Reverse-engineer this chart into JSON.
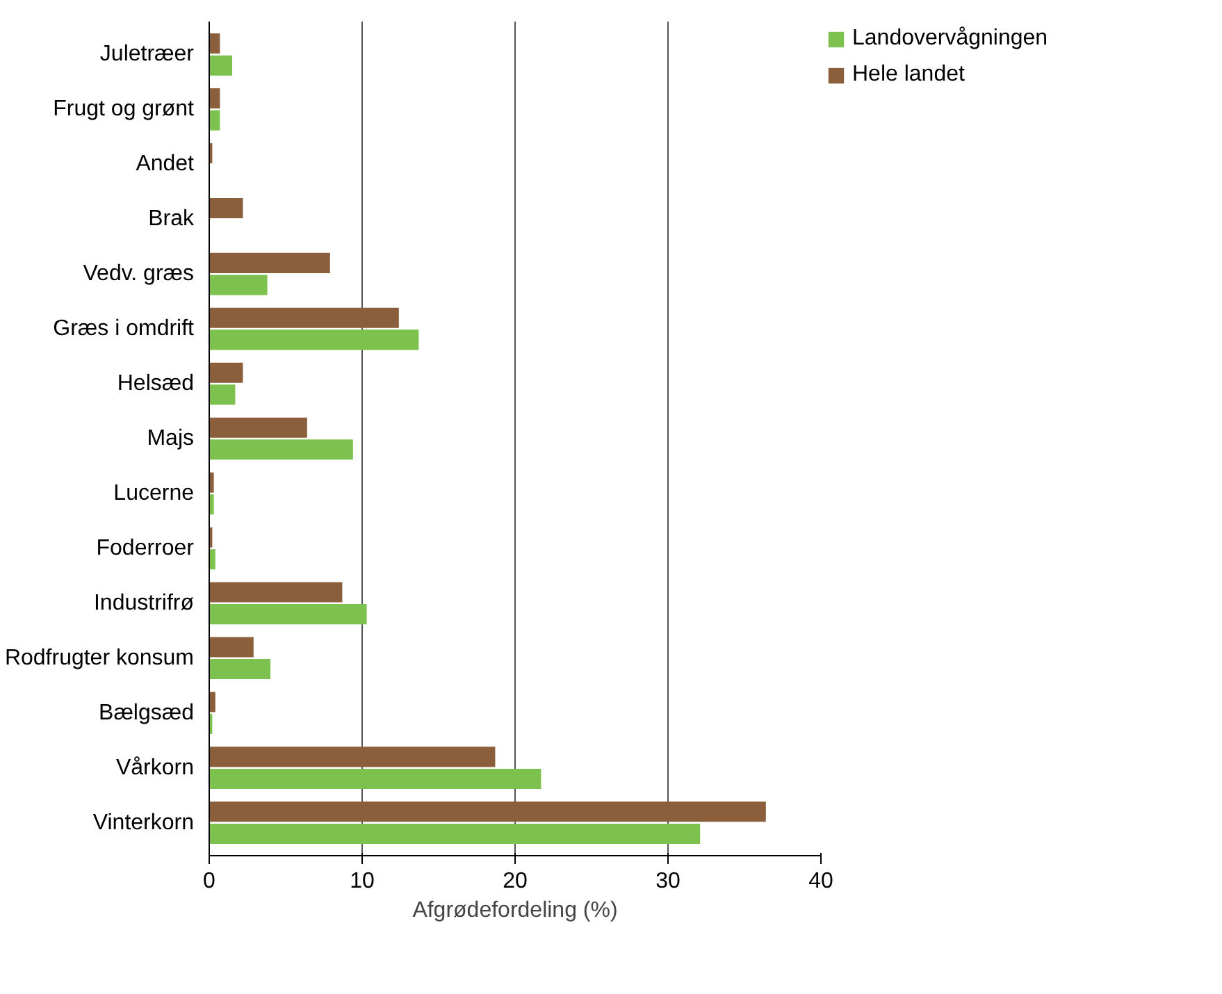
{
  "chart_data": {
    "type": "bar",
    "orientation": "horizontal",
    "xlabel": "Afgrødefordeling (%)",
    "categories": [
      "Juletræer",
      "Frugt og grønt",
      "Andet",
      "Brak",
      "Vedv. græs",
      "Græs i omdrift",
      "Helsæd",
      "Majs",
      "Lucerne",
      "Foderroer",
      "Industrifrø",
      "Rodfrugter konsum",
      "Bælgsæd",
      "Vårkorn",
      "Vinterkorn"
    ],
    "series": [
      {
        "name": "Landovervågningen",
        "color": "#7dc24f",
        "values": [
          1.5,
          0.7,
          null,
          null,
          3.8,
          13.7,
          1.7,
          9.4,
          0.3,
          0.4,
          10.3,
          4.0,
          0.2,
          21.7,
          32.1
        ]
      },
      {
        "name": "Hele landet",
        "color": "#8b5e3c",
        "values": [
          0.7,
          0.7,
          0.2,
          2.2,
          7.9,
          12.4,
          2.2,
          6.4,
          0.3,
          0.2,
          8.7,
          2.9,
          0.4,
          18.7,
          36.4
        ]
      }
    ],
    "xlim": [
      0,
      40
    ],
    "xticks": [
      0,
      10,
      20,
      30,
      40
    ],
    "grid": "x",
    "legend": "top right"
  }
}
